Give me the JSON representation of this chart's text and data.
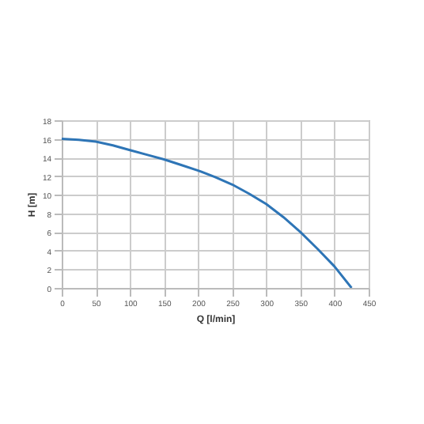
{
  "chart_data": {
    "type": "line",
    "xlabel": "Q [l/min]",
    "ylabel": "H [m]",
    "x": [
      0,
      25,
      50,
      75,
      100,
      125,
      150,
      175,
      200,
      225,
      250,
      275,
      300,
      325,
      350,
      375,
      400,
      425
    ],
    "series": [
      {
        "color": "#2e75b6",
        "values": [
          16,
          15.9,
          15.7,
          15.3,
          14.8,
          14.3,
          13.8,
          13.2,
          12.6,
          11.9,
          11.1,
          10.1,
          9.0,
          7.6,
          6.0,
          4.2,
          2.3,
          0
        ]
      }
    ],
    "xlim": [
      0,
      450
    ],
    "xticks": [
      0,
      50,
      100,
      150,
      200,
      250,
      300,
      350,
      400,
      450
    ],
    "ylim": [
      0,
      18
    ],
    "yticks": [
      0,
      2,
      4,
      6,
      8,
      10,
      12,
      14,
      16,
      18
    ],
    "grid": true,
    "marker": "none",
    "line_style": "solid"
  }
}
